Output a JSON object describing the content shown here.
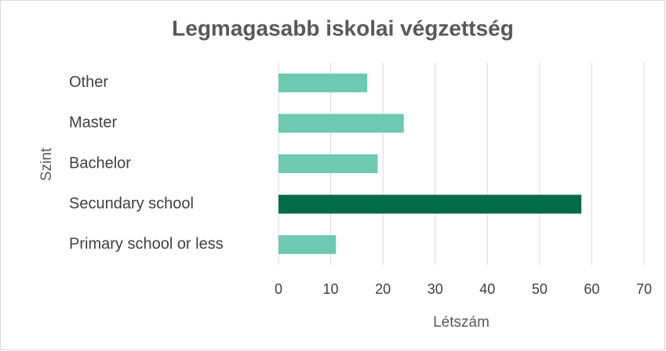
{
  "chart_data": {
    "type": "bar",
    "orientation": "horizontal",
    "title": "Legmagasabb iskolai végzettség",
    "x_label": "Létszám",
    "y_label": "Szint",
    "categories": [
      "Other",
      "Master",
      "Bachelor",
      "Secundary school",
      "Primary school or less"
    ],
    "values": [
      17,
      24,
      19,
      58,
      11
    ],
    "colors": [
      "#6dcab1",
      "#6dcab1",
      "#6dcab1",
      "#006b47",
      "#6dcab1"
    ],
    "xlim": [
      0,
      70
    ],
    "xticks": [
      0,
      10,
      20,
      30,
      40,
      50,
      60,
      70
    ],
    "grid": true
  }
}
